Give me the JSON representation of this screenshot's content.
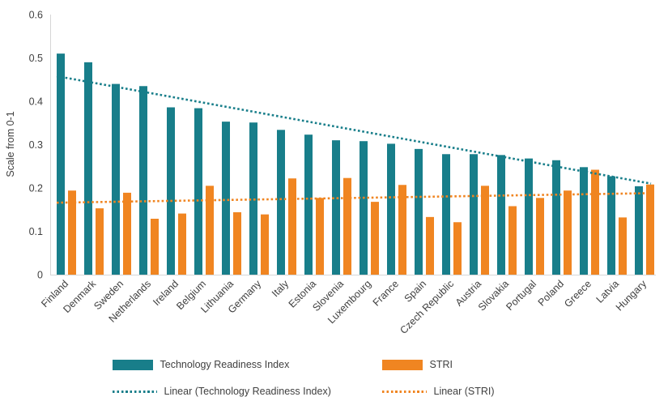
{
  "chart_data": {
    "type": "bar",
    "title": "",
    "xlabel": "",
    "ylabel": "Scale from 0-1",
    "ylim": [
      0,
      0.6
    ],
    "ytick_labels": [
      "0",
      "0.1",
      "0.2",
      "0.3",
      "0.4",
      "0.5",
      "0.6"
    ],
    "grid": false,
    "legend_position": "bottom",
    "categories": [
      "Finland",
      "Denmark",
      "Sweden",
      "Netherlands",
      "Ireland",
      "Belgium",
      "Lithuania",
      "Germany",
      "Italy",
      "Estonia",
      "Slovenia",
      "Luxembourg",
      "France",
      "Spain",
      "Czech Republic",
      "Austria",
      "Slovakia",
      "Portugal",
      "Poland",
      "Greece",
      "Latvia",
      "Hungary"
    ],
    "series": [
      {
        "name": "Technology Readiness Index",
        "color": "#187E8A",
        "values": [
          0.51,
          0.49,
          0.44,
          0.435,
          0.386,
          0.384,
          0.353,
          0.351,
          0.334,
          0.323,
          0.31,
          0.308,
          0.302,
          0.29,
          0.278,
          0.278,
          0.276,
          0.268,
          0.264,
          0.248,
          0.227,
          0.204
        ]
      },
      {
        "name": "STRI",
        "color": "#F08521",
        "values": [
          0.194,
          0.153,
          0.189,
          0.129,
          0.141,
          0.205,
          0.144,
          0.139,
          0.222,
          0.177,
          0.223,
          0.168,
          0.207,
          0.133,
          0.121,
          0.205,
          0.158,
          0.177,
          0.194,
          0.242,
          0.132,
          0.208
        ]
      }
    ],
    "trendlines": [
      {
        "name": "Linear (Technology Readiness Index)",
        "color": "#187E8A",
        "start_value": 0.458,
        "end_value": 0.21
      },
      {
        "name": "Linear (STRI)",
        "color": "#F08521",
        "start_value": 0.166,
        "end_value": 0.188
      }
    ],
    "axis_line_color": "#D6D6D6",
    "text_color": "#404040"
  }
}
